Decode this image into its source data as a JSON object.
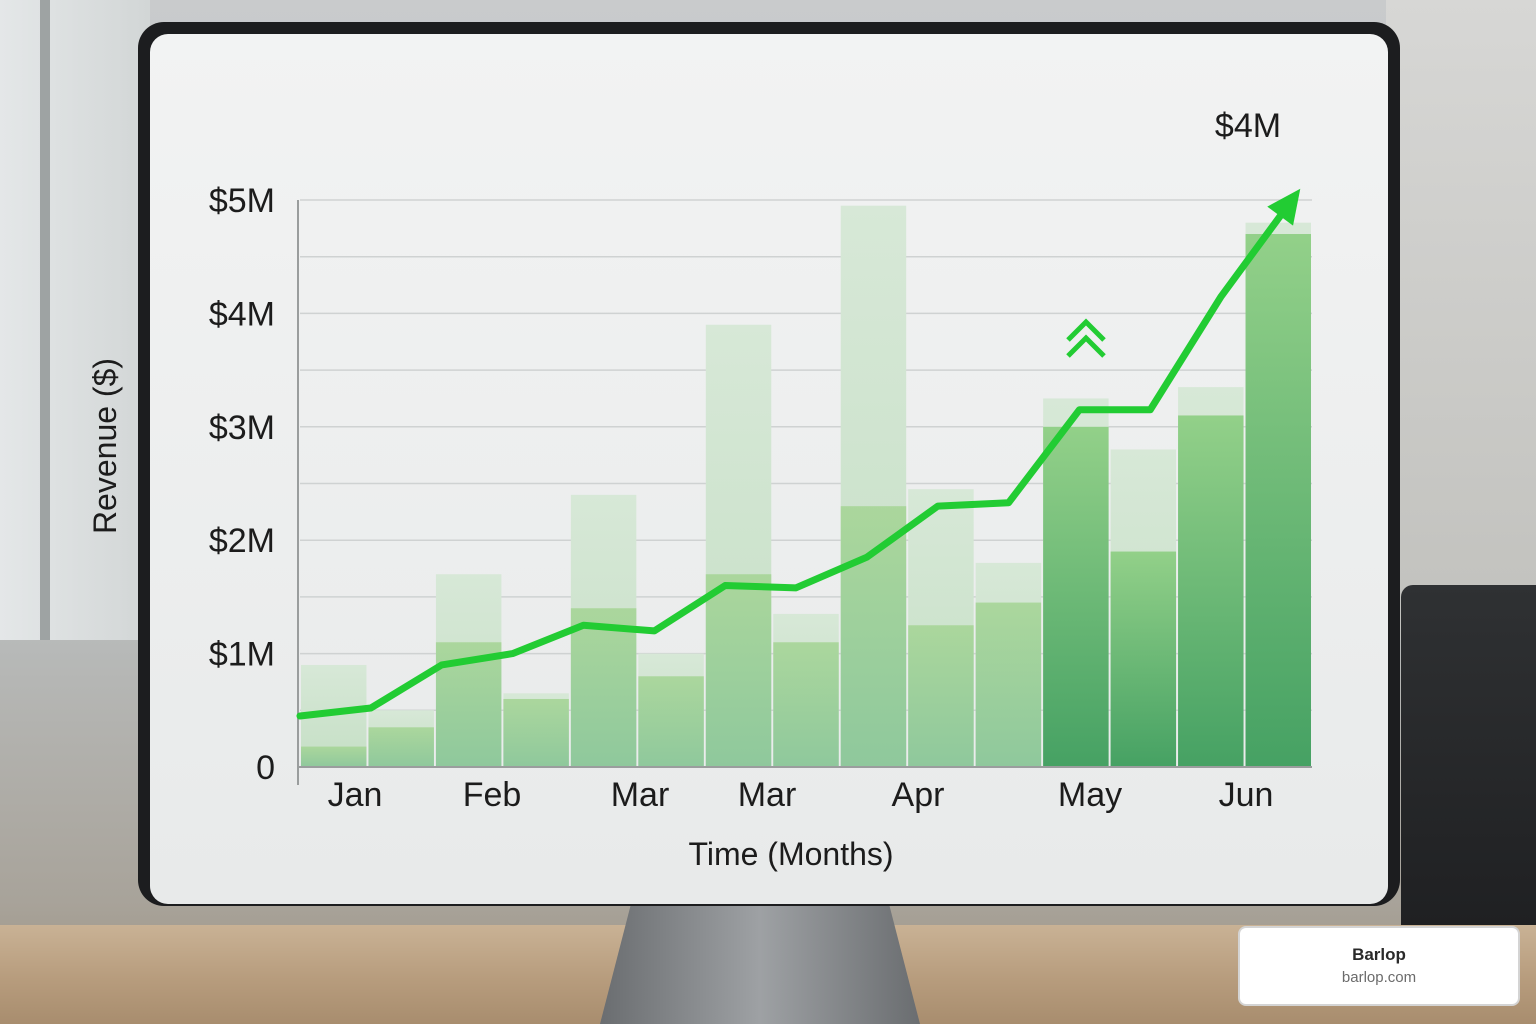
{
  "chart_data": {
    "type": "bar",
    "xlabel": "Time (Months)",
    "ylabel": "Revenue ($)",
    "y_tick_labels": [
      "0",
      "$1M",
      "$2M",
      "$3M",
      "$4M",
      "$5M"
    ],
    "ylim": [
      0,
      5
    ],
    "x_tick_labels": [
      "Jan",
      "Feb",
      "Mar",
      "Mar",
      "Apr",
      "May",
      "Jun"
    ],
    "grid": true,
    "bar_series": [
      {
        "values": [
          0.9,
          0.5,
          1.7,
          0.65,
          2.4,
          1.0,
          3.9,
          1.35,
          4.95,
          2.45,
          1.8,
          3.25,
          2.8,
          3.35,
          4.8
        ]
      },
      {
        "values": [
          0.18,
          0.35,
          1.1,
          0.6,
          1.4,
          0.8,
          1.7,
          1.1,
          2.3,
          1.25,
          1.45,
          3.0,
          1.9,
          3.1,
          4.7
        ]
      }
    ],
    "line_series": {
      "values": [
        0.45,
        0.52,
        0.9,
        1.0,
        1.25,
        1.2,
        1.6,
        1.58,
        1.85,
        2.3,
        2.33,
        3.15,
        3.15,
        4.15,
        5.0
      ]
    },
    "annotation": "$4M",
    "colors": {
      "line": "#22cc33",
      "bar_light": "#d3e5d3",
      "bar_mid": "#a8d4a8",
      "bar_dark": "#5fb26a",
      "arrow": "#22cc33"
    }
  },
  "watermark": {
    "name": "Barlop",
    "url": "barlop.com"
  }
}
